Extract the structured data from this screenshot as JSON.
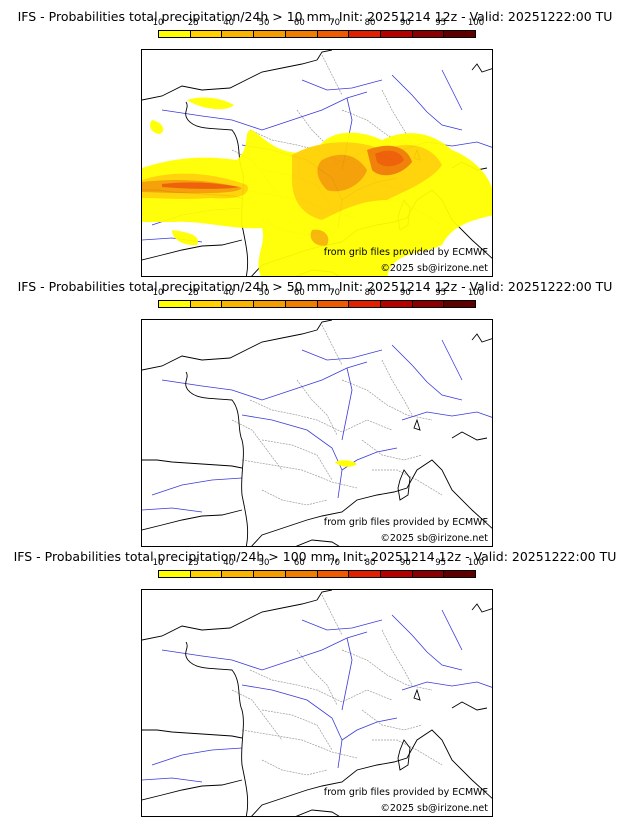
{
  "colorbar": {
    "ticks": [
      "10",
      "25",
      "40",
      "50",
      "60",
      "70",
      "80",
      "90",
      "95",
      "100"
    ],
    "colors": [
      "#ffff00",
      "#ffd200",
      "#f8b400",
      "#f49c00",
      "#f07c00",
      "#ee5a00",
      "#e02000",
      "#b50000",
      "#8a0000",
      "#5e0000"
    ]
  },
  "map_colors": {
    "coast": "#000000",
    "rivers": "#3a3adc",
    "borders": "#9a9a9a"
  },
  "panels": [
    {
      "title": "IFS - Probabilities total precipitation/24h > 10 mm, Init: 20251214 12z - Valid: 20251222:00 TU",
      "credit_source": "from grib files provided by ECMWF",
      "credit_copyright": "©2025 sb@irizone.net"
    },
    {
      "title": "IFS - Probabilities total precipitation/24h > 50 mm, Init: 20251214 12z - Valid: 20251222:00 TU",
      "credit_source": "from grib files provided by ECMWF",
      "credit_copyright": "©2025 sb@irizone.net"
    },
    {
      "title": "IFS - Probabilities total precipitation/24h > 100 mm, Init: 20251214 12z - Valid: 20251222:00 TU",
      "credit_source": "from grib files provided by ECMWF",
      "credit_copyright": "©2025 sb@irizone.net"
    }
  ]
}
